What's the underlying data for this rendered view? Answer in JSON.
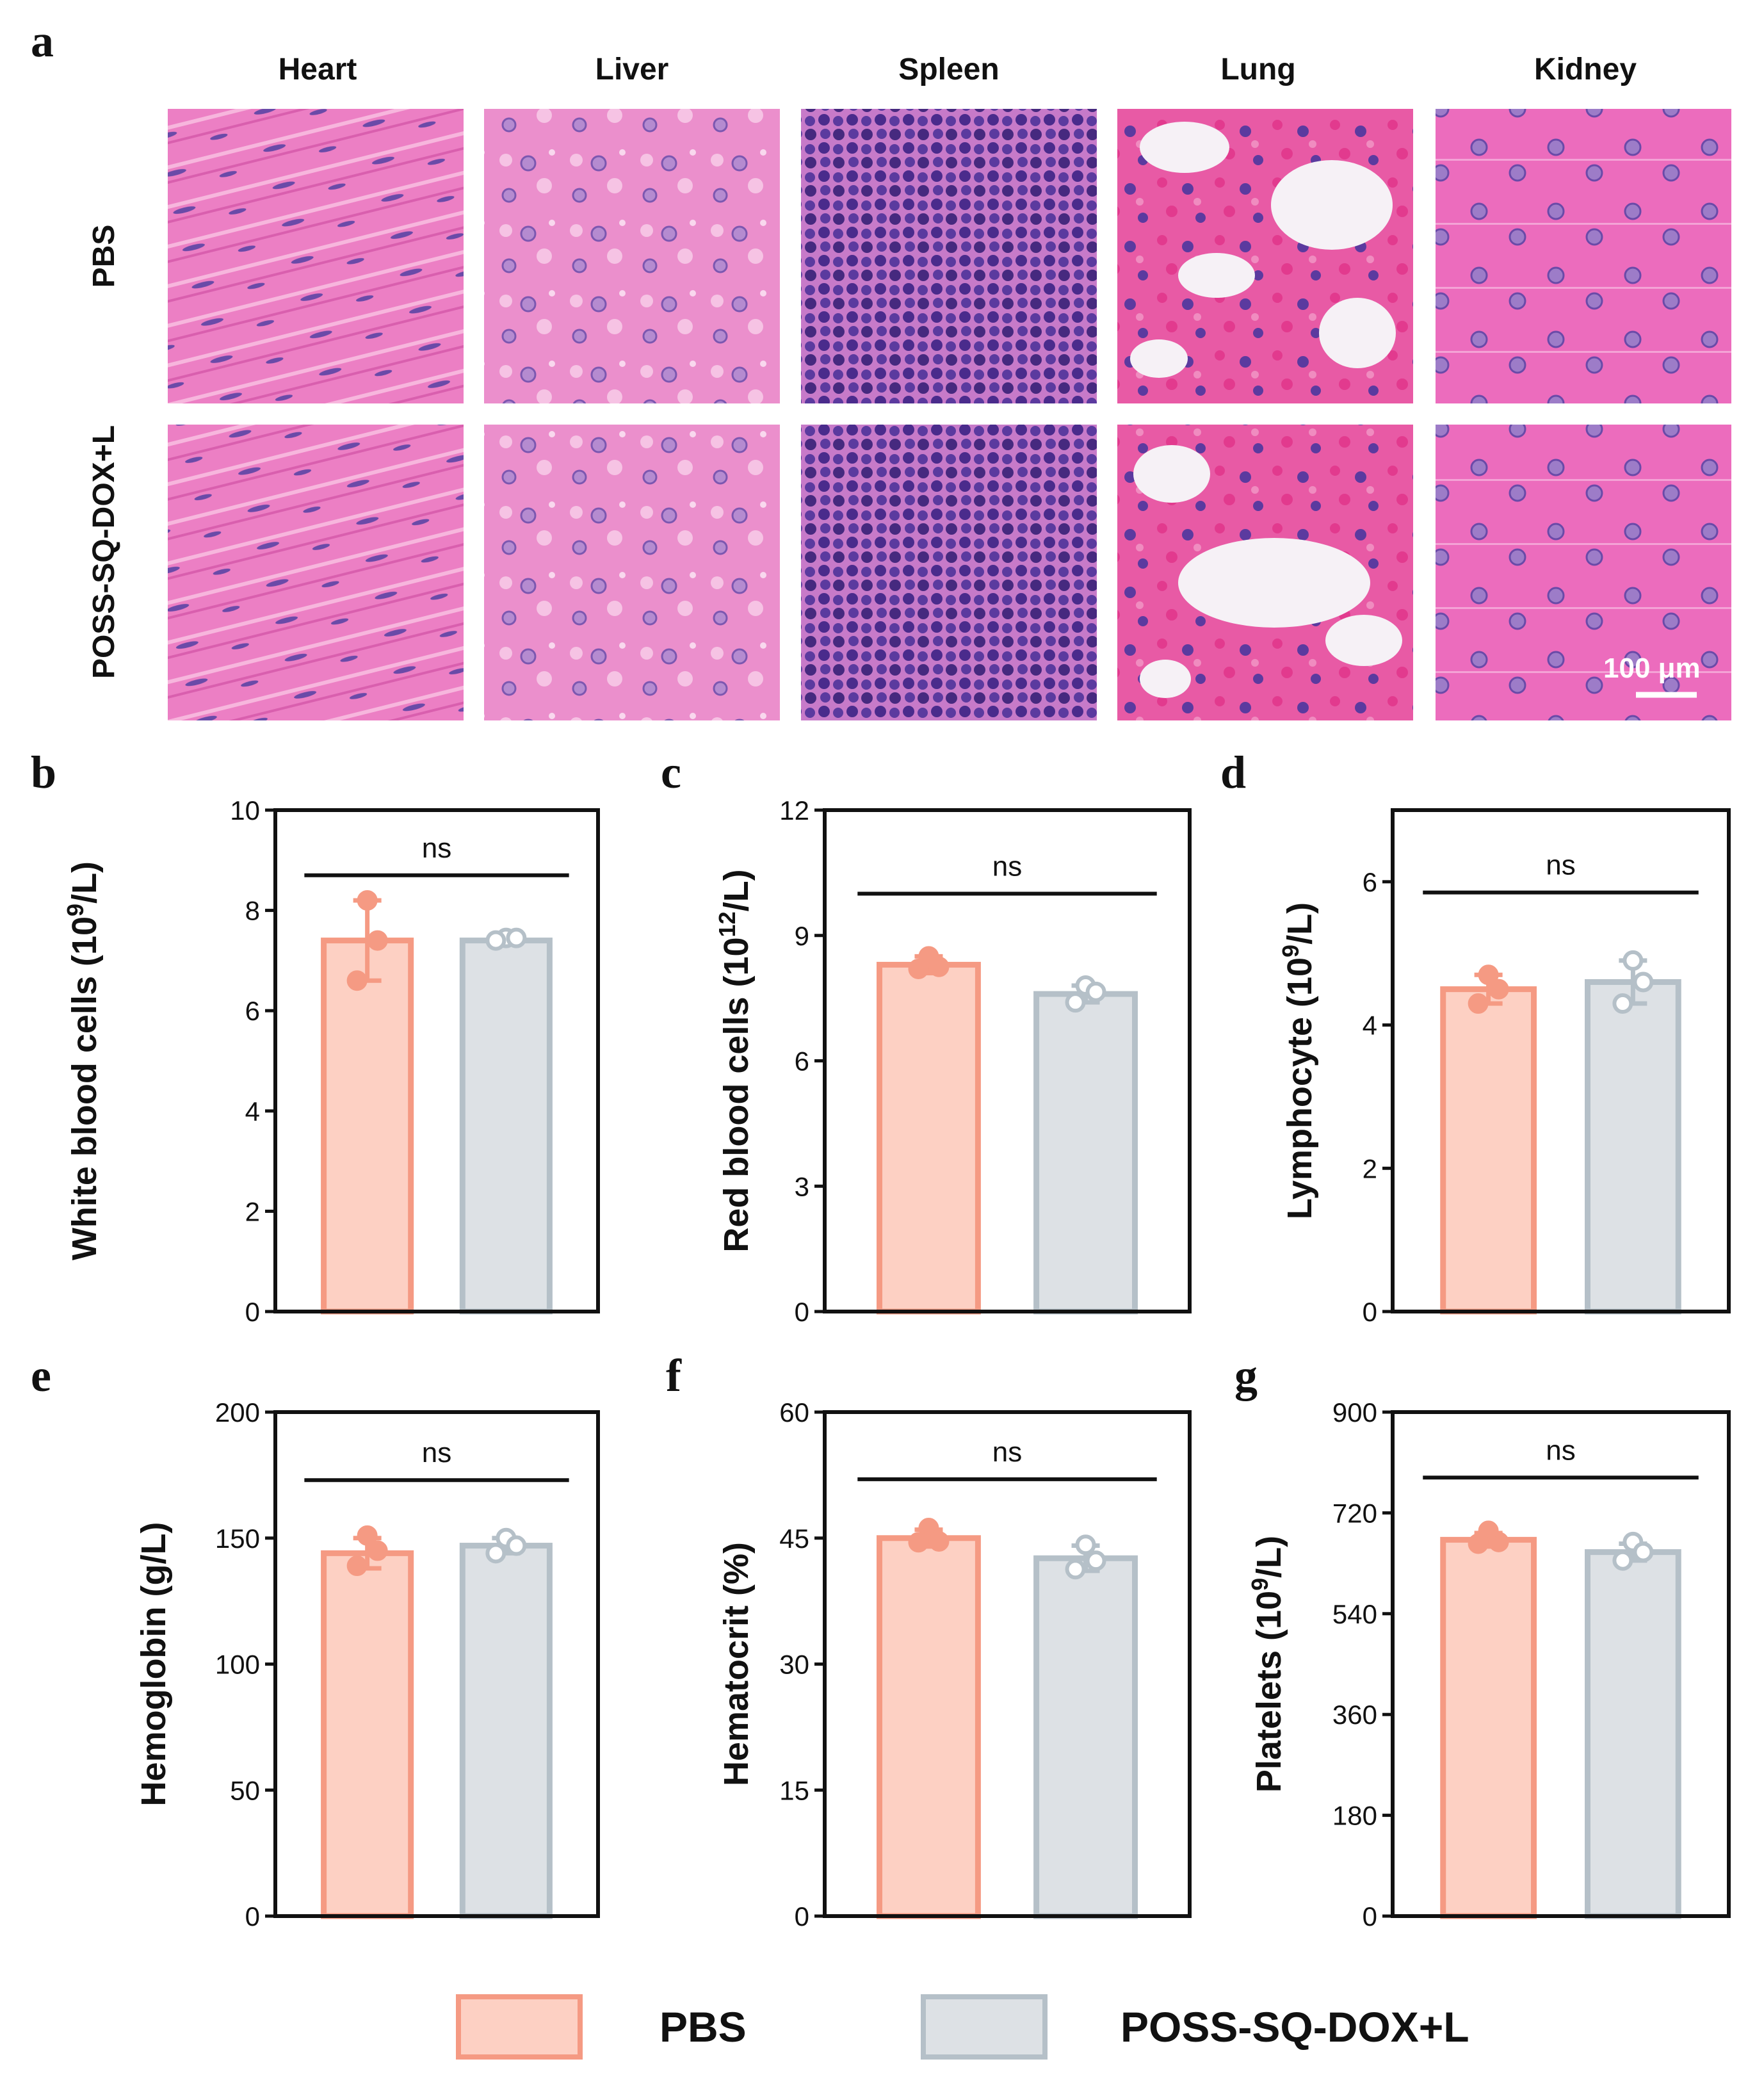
{
  "histology": {
    "panel_letter": "a",
    "organs": [
      "Heart",
      "Liver",
      "Spleen",
      "Lung",
      "Kidney"
    ],
    "groups": [
      "PBS",
      "POSS-SQ-DOX+L"
    ],
    "scale_bar": "100 μm"
  },
  "colors": {
    "pbs_fill": "#fdd0c3",
    "pbs_stroke": "#f59a83",
    "treat_fill": "#dde1e5",
    "treat_stroke": "#b5c0c8",
    "axis": "#111111",
    "he_pink": "#e96cb8",
    "he_nucleus": "#5a3a9c"
  },
  "legend": {
    "items": [
      "PBS",
      "POSS-SQ-DOX+L"
    ]
  },
  "chart_data": [
    {
      "type": "bar",
      "panel": "b",
      "categories": [
        "PBS",
        "POSS-SQ-DOX+L"
      ],
      "values": [
        7.4,
        7.4
      ],
      "points": [
        [
          8.2,
          6.6,
          7.4
        ],
        [
          7.45,
          7.4,
          7.45
        ]
      ],
      "sd": [
        0.8,
        0.05
      ],
      "yticks": [
        0,
        2,
        4,
        6,
        8,
        10
      ],
      "ylim": [
        0,
        10
      ],
      "ylabel_main": "White blood cells (10",
      "ylabel_sup": "9",
      "ylabel_end": "/L)",
      "annotation": "ns",
      "sig_y": 8.7
    },
    {
      "type": "bar",
      "panel": "c",
      "categories": [
        "PBS",
        "POSS-SQ-DOX+L"
      ],
      "values": [
        8.3,
        7.6
      ],
      "points": [
        [
          8.5,
          8.2,
          8.25
        ],
        [
          7.8,
          7.4,
          7.65
        ]
      ],
      "sd": [
        0.2,
        0.2
      ],
      "yticks": [
        0,
        3,
        6,
        9,
        12
      ],
      "ylim": [
        0,
        12
      ],
      "ylabel_main": "Red blood cells (10",
      "ylabel_sup": "12",
      "ylabel_end": "/L)",
      "annotation": "ns",
      "sig_y": 10.0
    },
    {
      "type": "bar",
      "panel": "d",
      "categories": [
        "PBS",
        "POSS-SQ-DOX+L"
      ],
      "values": [
        4.5,
        4.6
      ],
      "points": [
        [
          4.7,
          4.3,
          4.5
        ],
        [
          4.9,
          4.3,
          4.6
        ]
      ],
      "sd": [
        0.2,
        0.3
      ],
      "yticks": [
        0,
        2,
        4,
        6
      ],
      "ylim": [
        0,
        7
      ],
      "ylabel_main": "Lymphocyte (10",
      "ylabel_sup": "9",
      "ylabel_end": "/L)",
      "annotation": "ns",
      "sig_y": 5.85
    },
    {
      "type": "bar",
      "panel": "e",
      "categories": [
        "PBS",
        "POSS-SQ-DOX+L"
      ],
      "values": [
        144,
        147
      ],
      "points": [
        [
          151,
          139,
          145
        ],
        [
          150,
          144,
          147
        ]
      ],
      "sd": [
        6,
        3
      ],
      "yticks": [
        0,
        50,
        100,
        150,
        200
      ],
      "ylim": [
        0,
        200
      ],
      "ylabel_main": "Hemoglobin (g/L)",
      "ylabel_sup": "",
      "ylabel_end": "",
      "annotation": "ns",
      "sig_y": 173
    },
    {
      "type": "bar",
      "panel": "f",
      "categories": [
        "PBS",
        "POSS-SQ-DOX+L"
      ],
      "values": [
        45,
        42.6
      ],
      "points": [
        [
          46.2,
          44.5,
          44.6
        ],
        [
          44.2,
          41.3,
          42.3
        ]
      ],
      "sd": [
        1.0,
        1.5
      ],
      "yticks": [
        0,
        15,
        30,
        45,
        60
      ],
      "ylim": [
        0,
        60
      ],
      "ylabel_main": "Hematocrit (%)",
      "ylabel_sup": "",
      "ylabel_end": "",
      "annotation": "ns",
      "sig_y": 52
    },
    {
      "type": "bar",
      "panel": "g",
      "categories": [
        "PBS",
        "POSS-SQ-DOX+L"
      ],
      "values": [
        672,
        650
      ],
      "points": [
        [
          688,
          665,
          668
        ],
        [
          668,
          635,
          650
        ]
      ],
      "sd": [
        12,
        15
      ],
      "yticks": [
        0,
        180,
        360,
        540,
        720,
        900
      ],
      "ylim": [
        0,
        900
      ],
      "ylabel_main": "Platelets (10",
      "ylabel_sup": "9",
      "ylabel_end": "/L)",
      "annotation": "ns",
      "sig_y": 783
    }
  ]
}
